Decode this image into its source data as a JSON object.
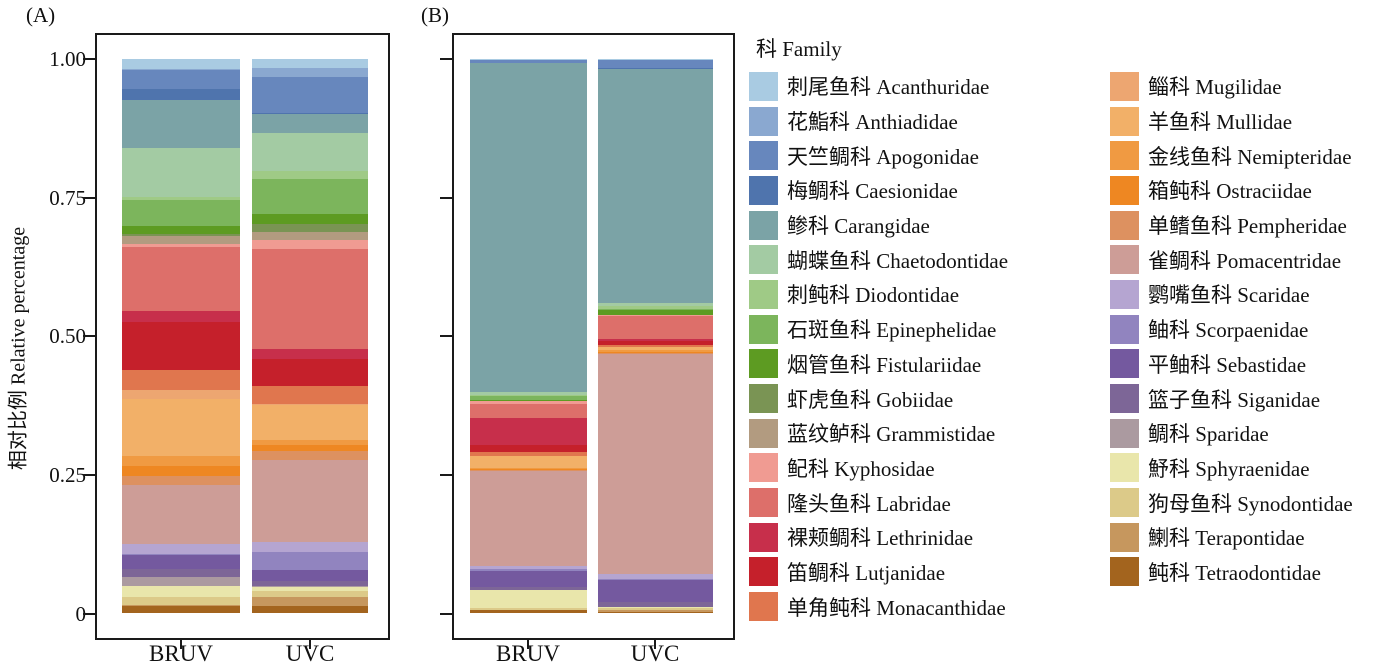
{
  "panel_a_label": "(A)",
  "panel_b_label": "(B)",
  "y_axis": {
    "label": "相对比例 Relative percentage",
    "ticks": [
      "1.00",
      "0.75",
      "0.50",
      "0.25",
      "0"
    ]
  },
  "x_categories": [
    "BRUV",
    "UVC"
  ],
  "legend": {
    "title": "科 Family",
    "families": [
      {
        "cn": "刺尾鱼科",
        "la": "Acanthuridae",
        "color": "#a9cbe2"
      },
      {
        "cn": "花鮨科",
        "la": "Anthiadidae",
        "color": "#8aa8d0"
      },
      {
        "cn": "天竺鲷科",
        "la": "Apogonidae",
        "color": "#6787bd"
      },
      {
        "cn": "梅鲷科",
        "la": "Caesionidae",
        "color": "#4f74ad"
      },
      {
        "cn": "鲹科",
        "la": "Carangidae",
        "color": "#7ba3a6"
      },
      {
        "cn": "蝴蝶鱼科",
        "la": "Chaetodontidae",
        "color": "#a3cba3"
      },
      {
        "cn": "刺鲀科",
        "la": "Diodontidae",
        "color": "#9fca86"
      },
      {
        "cn": "石斑鱼科",
        "la": "Epinephelidae",
        "color": "#7cb55c"
      },
      {
        "cn": "烟管鱼科",
        "la": "Fistulariidae",
        "color": "#5d9b22"
      },
      {
        "cn": "虾虎鱼科",
        "la": "Gobiidae",
        "color": "#7a9454"
      },
      {
        "cn": "蓝纹鲈科",
        "la": "Grammistidae",
        "color": "#b29b80"
      },
      {
        "cn": "鱾科",
        "la": "Kyphosidae",
        "color": "#f09b92"
      },
      {
        "cn": "隆头鱼科",
        "la": "Labridae",
        "color": "#dd6f6a"
      },
      {
        "cn": "裸颊鲷科",
        "la": "Lethrinidae",
        "color": "#c72f4b"
      },
      {
        "cn": "笛鲷科",
        "la": "Lutjanidae",
        "color": "#c5202b"
      },
      {
        "cn": "单角鲀科",
        "la": "Monacanthidae",
        "color": "#e0764e"
      },
      {
        "cn": "鲻科",
        "la": "Mugilidae",
        "color": "#eda671"
      },
      {
        "cn": "羊鱼科",
        "la": "Mullidae",
        "color": "#f2b068"
      },
      {
        "cn": "金线鱼科",
        "la": "Nemipteridae",
        "color": "#f09a42"
      },
      {
        "cn": "箱鲀科",
        "la": "Ostraciidae",
        "color": "#ee8722"
      },
      {
        "cn": "单鳍鱼科",
        "la": "Pempheridae",
        "color": "#dd9160"
      },
      {
        "cn": "雀鲷科",
        "la": "Pomacentridae",
        "color": "#cd9d97"
      },
      {
        "cn": "鹦嘴鱼科",
        "la": "Scaridae",
        "color": "#b5a5d1"
      },
      {
        "cn": "鲉科",
        "la": "Scorpaenidae",
        "color": "#9184bf"
      },
      {
        "cn": "平鲉科",
        "la": "Sebastidae",
        "color": "#74599f"
      },
      {
        "cn": "篮子鱼科",
        "la": "Siganidae",
        "color": "#7d6697"
      },
      {
        "cn": "鲷科",
        "la": "Sparidae",
        "color": "#ab9aa0"
      },
      {
        "cn": "魣科",
        "la": "Sphyraenidae",
        "color": "#e9e6ab"
      },
      {
        "cn": "狗母鱼科",
        "la": "Synodontidae",
        "color": "#dcca89"
      },
      {
        "cn": "鯻科",
        "la": "Terapontidae",
        "color": "#c6975e"
      },
      {
        "cn": "鲀科",
        "la": "Tetraodontidae",
        "color": "#a3641e"
      }
    ]
  },
  "chart_data": {
    "type": "bar",
    "stacked": true,
    "ylabel": "相对比例 Relative percentage",
    "ylim": [
      0,
      1.0
    ],
    "yticks": [
      0,
      0.25,
      0.5,
      0.75,
      1.0
    ],
    "legend_position": "right",
    "grid": false,
    "families_order": [
      "Acanthuridae",
      "Anthiadidae",
      "Apogonidae",
      "Caesionidae",
      "Carangidae",
      "Chaetodontidae",
      "Diodontidae",
      "Epinephelidae",
      "Fistulariidae",
      "Gobiidae",
      "Grammistidae",
      "Kyphosidae",
      "Labridae",
      "Lethrinidae",
      "Lutjanidae",
      "Monacanthidae",
      "Mugilidae",
      "Mullidae",
      "Nemipteridae",
      "Ostraciidae",
      "Pempheridae",
      "Pomacentridae",
      "Scaridae",
      "Scorpaenidae",
      "Sebastidae",
      "Siganidae",
      "Sparidae",
      "Sphyraenidae",
      "Synodontidae",
      "Terapontidae",
      "Tetraodontidae"
    ],
    "stack_order": "alphabetical-from-top",
    "panels": [
      {
        "label": "(A)",
        "categories": [
          "BRUV",
          "UVC"
        ],
        "bars": [
          {
            "category": "BRUV",
            "values": [
              0.018,
              0.002,
              0.035,
              0.019,
              0.087,
              0.09,
              0.004,
              0.048,
              0.015,
              0.002,
              0.015,
              0.006,
              0.115,
              0.021,
              0.087,
              0.036,
              0.017,
              0.102,
              0.019,
              0.018,
              0.017,
              0.107,
              0.017,
              0.002,
              0.025,
              0.015,
              0.017,
              0.019,
              0.015,
              0.002,
              0.012
            ]
          },
          {
            "category": "UVC",
            "values": [
              0.016,
              0.016,
              0.066,
              0.002,
              0.034,
              0.068,
              0.015,
              0.063,
              0.018,
              0.015,
              0.015,
              0.015,
              0.182,
              0.018,
              0.048,
              0.033,
              0.002,
              0.063,
              0.01,
              0.011,
              0.015,
              0.148,
              0.019,
              0.032,
              0.02,
              0.01,
              0.002,
              0.007,
              0.01,
              0.017,
              0.012
            ]
          }
        ]
      },
      {
        "label": "(B)",
        "categories": [
          "BRUV",
          "UVC"
        ],
        "bars": [
          {
            "category": "BRUV",
            "values": [
              0.002,
              0.0,
              0.006,
              0.0,
              0.598,
              0.005,
              0.002,
              0.007,
              0.002,
              0.0,
              0.0,
              0.005,
              0.027,
              0.048,
              0.014,
              0.007,
              0.0,
              0.021,
              0.002,
              0.002,
              0.002,
              0.172,
              0.007,
              0.002,
              0.03,
              0.006,
              0.0,
              0.033,
              0.002,
              0.0,
              0.006
            ]
          },
          {
            "category": "UVC",
            "values": [
              0.002,
              0.0,
              0.015,
              0.002,
              0.425,
              0.006,
              0.006,
              0.002,
              0.008,
              0.0,
              0.0,
              0.002,
              0.043,
              0.004,
              0.007,
              0.004,
              0.0,
              0.004,
              0.004,
              0.002,
              0.002,
              0.402,
              0.008,
              0.002,
              0.04,
              0.01,
              0.0,
              0.002,
              0.002,
              0.004,
              0.002
            ]
          }
        ]
      }
    ]
  }
}
